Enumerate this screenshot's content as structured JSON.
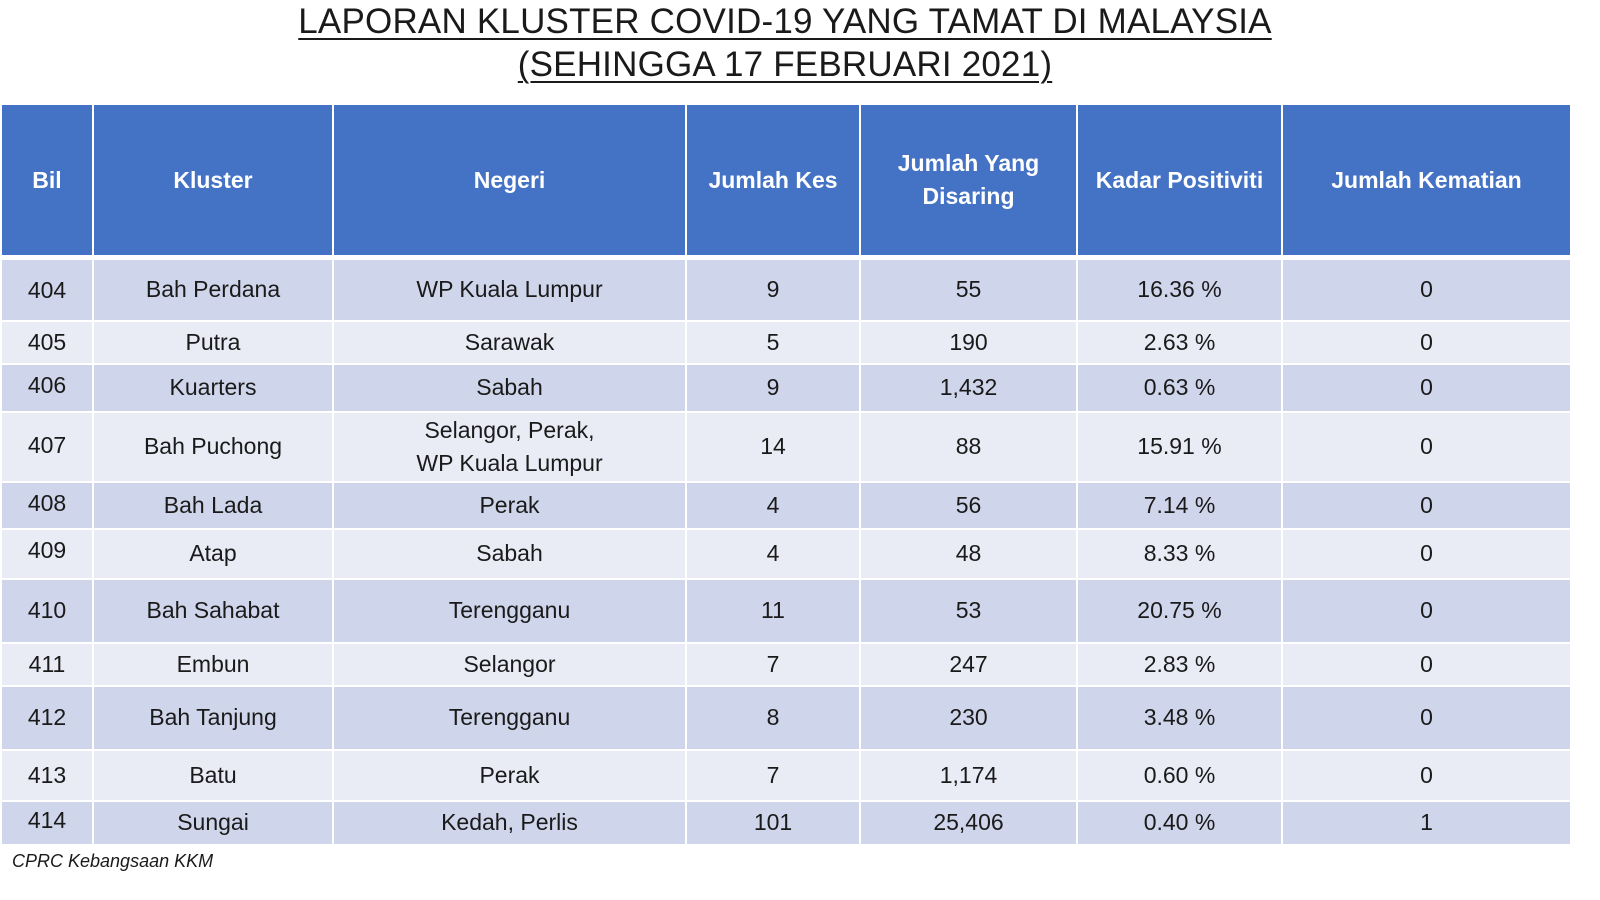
{
  "title": {
    "line1": "LAPORAN KLUSTER COVID-19 YANG TAMAT DI MALAYSIA",
    "line2": "(SEHINGGA 17 FEBRUARI 2021)"
  },
  "columns": [
    "Bil",
    "Kluster",
    "Negeri",
    "Jumlah Kes",
    "Jumlah Yang Disaring",
    "Kadar Positiviti",
    "Jumlah Kematian"
  ],
  "rows": [
    {
      "bil": "404",
      "kluster": "Bah Perdana",
      "negeri": "WP Kuala Lumpur",
      "kes": "9",
      "disaring": "55",
      "positiviti": "16.36 %",
      "kematian": "0"
    },
    {
      "bil": "405",
      "kluster": "Putra",
      "negeri": "Sarawak",
      "kes": "5",
      "disaring": "190",
      "positiviti": "2.63 %",
      "kematian": "0"
    },
    {
      "bil": "406",
      "kluster": "Kuarters",
      "negeri": "Sabah",
      "kes": "9",
      "disaring": "1,432",
      "positiviti": "0.63 %",
      "kematian": "0"
    },
    {
      "bil": "407",
      "kluster": "Bah Puchong",
      "negeri": "Selangor, Perak,\nWP Kuala Lumpur",
      "kes": "14",
      "disaring": "88",
      "positiviti": "15.91 %",
      "kematian": "0"
    },
    {
      "bil": "408",
      "kluster": "Bah Lada",
      "negeri": "Perak",
      "kes": "4",
      "disaring": "56",
      "positiviti": "7.14 %",
      "kematian": "0"
    },
    {
      "bil": "409",
      "kluster": "Atap",
      "negeri": "Sabah",
      "kes": "4",
      "disaring": "48",
      "positiviti": "8.33 %",
      "kematian": "0"
    },
    {
      "bil": "410",
      "kluster": "Bah Sahabat",
      "negeri": "Terengganu",
      "kes": "11",
      "disaring": "53",
      "positiviti": "20.75 %",
      "kematian": "0"
    },
    {
      "bil": "411",
      "kluster": "Embun",
      "negeri": "Selangor",
      "kes": "7",
      "disaring": "247",
      "positiviti": "2.83 %",
      "kematian": "0"
    },
    {
      "bil": "412",
      "kluster": "Bah Tanjung",
      "negeri": "Terengganu",
      "kes": "8",
      "disaring": "230",
      "positiviti": "3.48 %",
      "kematian": "0"
    },
    {
      "bil": "413",
      "kluster": "Batu",
      "negeri": "Perak",
      "kes": "7",
      "disaring": "1,174",
      "positiviti": "0.60 %",
      "kematian": "0"
    },
    {
      "bil": "414",
      "kluster": "Sungai",
      "negeri": "Kedah, Perlis",
      "kes": "101",
      "disaring": "25,406",
      "positiviti": "0.40 %",
      "kematian": "1"
    }
  ],
  "footer": "CPRC Kebangsaan KKM",
  "colors": {
    "header_bg": "#4472c4",
    "row_dark": "#cfd5ea",
    "row_light": "#e9ebf5"
  }
}
